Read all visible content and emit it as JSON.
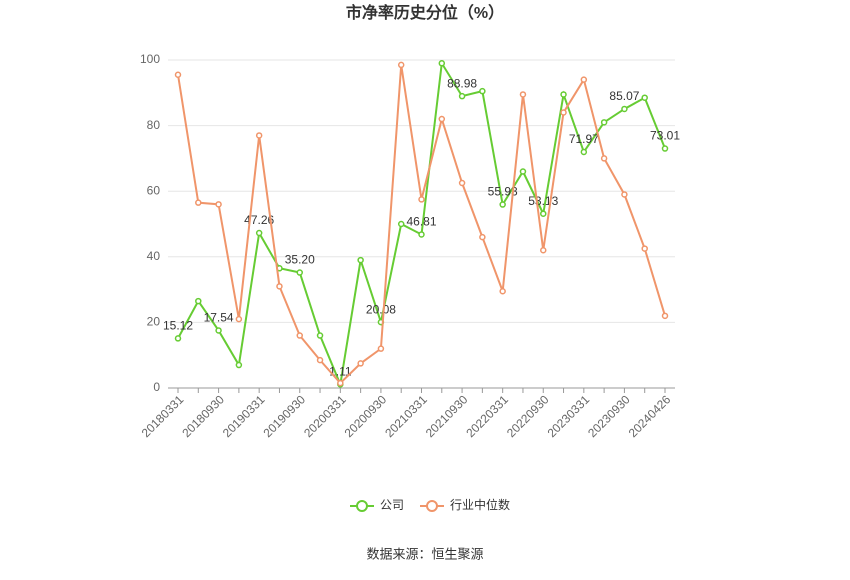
{
  "chart_data": {
    "type": "line",
    "title": "市净率历史分位（%）",
    "categories": [
      "20180331",
      null,
      "20180930",
      null,
      "20190331",
      null,
      "20190930",
      null,
      "20200331",
      null,
      "20200930",
      null,
      "20210331",
      null,
      "20210930",
      null,
      "20220331",
      null,
      "20220930",
      null,
      "20230331",
      null,
      "20230930",
      null,
      "20240426"
    ],
    "series": [
      {
        "name": "公司",
        "color": "#66cc33",
        "values": [
          15.12,
          26.5,
          17.54,
          7,
          47.26,
          36.5,
          35.2,
          16,
          1.11,
          39,
          20.08,
          50,
          46.81,
          99,
          88.98,
          90.5,
          55.93,
          66,
          53.13,
          89.5,
          71.97,
          81,
          85.07,
          88.5,
          73.01
        ],
        "value_labels": [
          "15.12",
          null,
          "17.54",
          null,
          "47.26",
          null,
          "35.20",
          null,
          "1.11",
          null,
          "20.08",
          null,
          "46.81",
          null,
          "88.98",
          null,
          "55.93",
          null,
          "53.13",
          null,
          "71.97",
          null,
          "85.07",
          null,
          "73.01"
        ]
      },
      {
        "name": "行业中位数",
        "color": "#f0956a",
        "values": [
          95.5,
          56.5,
          56,
          21,
          77,
          31,
          16,
          8.5,
          1.5,
          7.5,
          12,
          98.5,
          57.5,
          82,
          62.5,
          46,
          29.5,
          89.5,
          42,
          84,
          94,
          70,
          59,
          42.5,
          22
        ]
      }
    ],
    "ylim": [
      0,
      100
    ],
    "yticks": [
      0,
      20,
      40,
      60,
      80,
      100
    ],
    "grid": true,
    "source": "数据来源：恒生聚源"
  }
}
